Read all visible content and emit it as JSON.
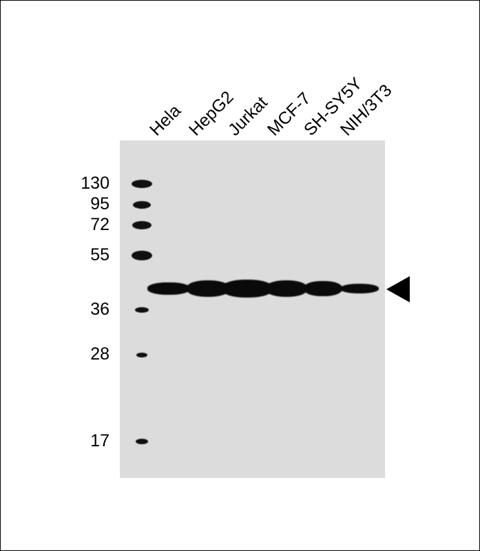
{
  "lanes": [
    {
      "label": "Hela"
    },
    {
      "label": "HepG2"
    },
    {
      "label": "Jurkat"
    },
    {
      "label": "MCF-7"
    },
    {
      "label": "SH-SY5Y"
    },
    {
      "label": "NIH/3T3"
    }
  ],
  "markers": [
    {
      "label": "130"
    },
    {
      "label": "95"
    },
    {
      "label": "72"
    },
    {
      "label": "55"
    },
    {
      "label": "36"
    },
    {
      "label": "28"
    },
    {
      "label": "17"
    }
  ],
  "arrow_icon": "left-pointing-triangle",
  "colors": {
    "membrane": "#dcdcdc",
    "band": "#0a0a0a"
  }
}
